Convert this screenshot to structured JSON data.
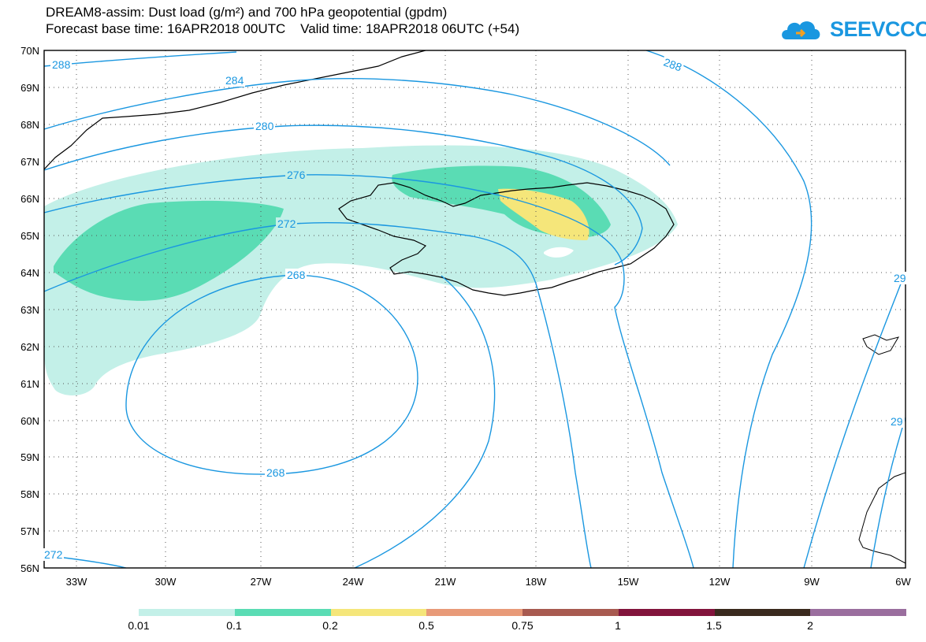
{
  "header": {
    "title_line1": "DREAM8-assim: Dust load (g/m²) and 700 hPa geopotential (gpdm)",
    "title_line2": "Forecast base time: 16APR2018 00UTC    Valid time: 18APR2018 06UTC (+54)",
    "logo_text": "SEEVCCC"
  },
  "axes": {
    "lat_labels": [
      "70N",
      "69N",
      "68N",
      "67N",
      "66N",
      "65N",
      "64N",
      "63N",
      "62N",
      "61N",
      "60N",
      "59N",
      "58N",
      "57N",
      "56N"
    ],
    "lon_labels": [
      "33W",
      "30W",
      "27W",
      "24W",
      "21W",
      "18W",
      "15W",
      "12W",
      "9W",
      "6W"
    ]
  },
  "contours": {
    "color": "#1a97e0",
    "labels": [
      "288",
      "284",
      "280",
      "276",
      "272",
      "268",
      "268",
      "288",
      "272",
      "29",
      "29"
    ]
  },
  "legend": {
    "colors": [
      "#c3f0e8",
      "#5adcb4",
      "#f5e67a",
      "#e89a78",
      "#a85a50",
      "#82143c",
      "#3a2a1e",
      "#9a6e9e"
    ],
    "labels": [
      "0.01",
      "0.1",
      "0.2",
      "0.5",
      "0.75",
      "1",
      "1.5",
      "2"
    ]
  },
  "colors": {
    "dust_light": "#c3f0e8",
    "dust_mid": "#5adcb4",
    "dust_high": "#f5e67a",
    "coast": "#000000",
    "grid": "#555555"
  }
}
